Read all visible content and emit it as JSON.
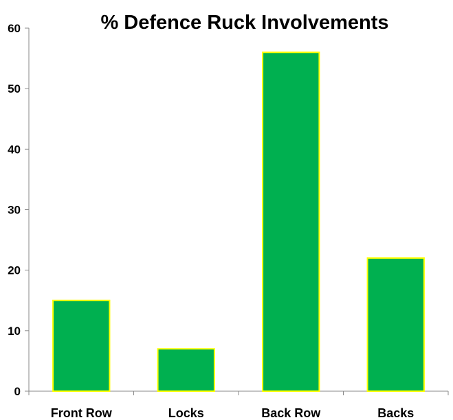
{
  "chart_data": {
    "type": "bar",
    "title": "% Defence Ruck Involvements",
    "categories": [
      "Front Row",
      "Locks",
      "Back Row",
      "Backs"
    ],
    "values": [
      15,
      7,
      56,
      22
    ],
    "ylim": [
      0,
      60
    ],
    "yticks": [
      0,
      10,
      20,
      30,
      40,
      50,
      60
    ],
    "grid": false,
    "legend": "none",
    "bar_color": "#00b050",
    "bar_edge_color": "#ffff00"
  }
}
